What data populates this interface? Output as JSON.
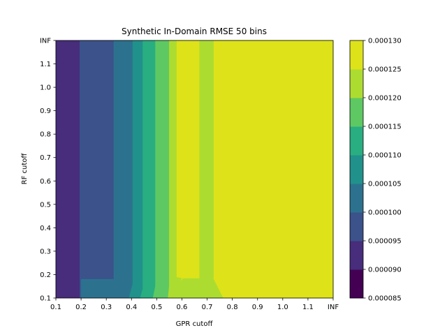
{
  "chart_data": {
    "type": "heatmap",
    "title": "Synthetic In-Domain RMSE 50 bins",
    "xlabel": "GPR cutoff",
    "ylabel": "RF cutoff",
    "x_tick_labels": [
      "0.1",
      "0.2",
      "0.3",
      "0.4",
      "0.5",
      "0.6",
      "0.7",
      "0.8",
      "0.9",
      "1.0",
      "1.1",
      "INF"
    ],
    "y_tick_labels": [
      "0.1",
      "0.2",
      "0.3",
      "0.4",
      "0.5",
      "0.6",
      "0.7",
      "0.8",
      "0.9",
      "1.0",
      "1.1",
      "INF"
    ],
    "colorbar": {
      "tick_labels": [
        "0.000085",
        "0.000090",
        "0.000095",
        "0.000100",
        "0.000105",
        "0.000110",
        "0.000115",
        "0.000120",
        "0.000125",
        "0.000130"
      ],
      "levels": [
        8.5e-05,
        9e-05,
        9.5e-05,
        0.0001,
        0.000105,
        0.00011,
        0.000115,
        0.00012,
        0.000125,
        0.00013
      ],
      "colors": [
        "#440154",
        "#472d7b",
        "#3b528b",
        "#2c728e",
        "#21918c",
        "#28ae80",
        "#5ec962",
        "#addc30",
        "#dde318"
      ]
    },
    "column_values_at_rf_0.3_and_above": {
      "gpr_cutoffs": [
        "0.1",
        "0.2",
        "0.3",
        "0.4",
        "0.5",
        "0.6",
        "0.7",
        "0.8",
        "0.9",
        "1.0",
        "1.1",
        "INF"
      ],
      "rmse": [
        9.05e-05,
        9.15e-05,
        9.75e-05,
        0.000104,
        0.000115,
        0.000127,
        0.000123,
        0.000127,
        0.000127,
        0.000127,
        0.000127,
        0.000127
      ]
    },
    "column_values_at_rf_0.1": {
      "gpr_cutoffs": [
        "0.1",
        "0.2",
        "0.3",
        "0.4",
        "0.5",
        "0.6",
        "0.7",
        "0.8",
        "0.9",
        "1.0",
        "1.1",
        "INF"
      ],
      "rmse": [
        9.05e-05,
        9.15e-05,
        9.95e-05,
        0.000106,
        0.000119,
        0.000123,
        0.000123,
        0.000127,
        0.000127,
        0.000127,
        0.000127,
        0.000127
      ]
    },
    "grid": false,
    "legend": "colorbar-right"
  }
}
